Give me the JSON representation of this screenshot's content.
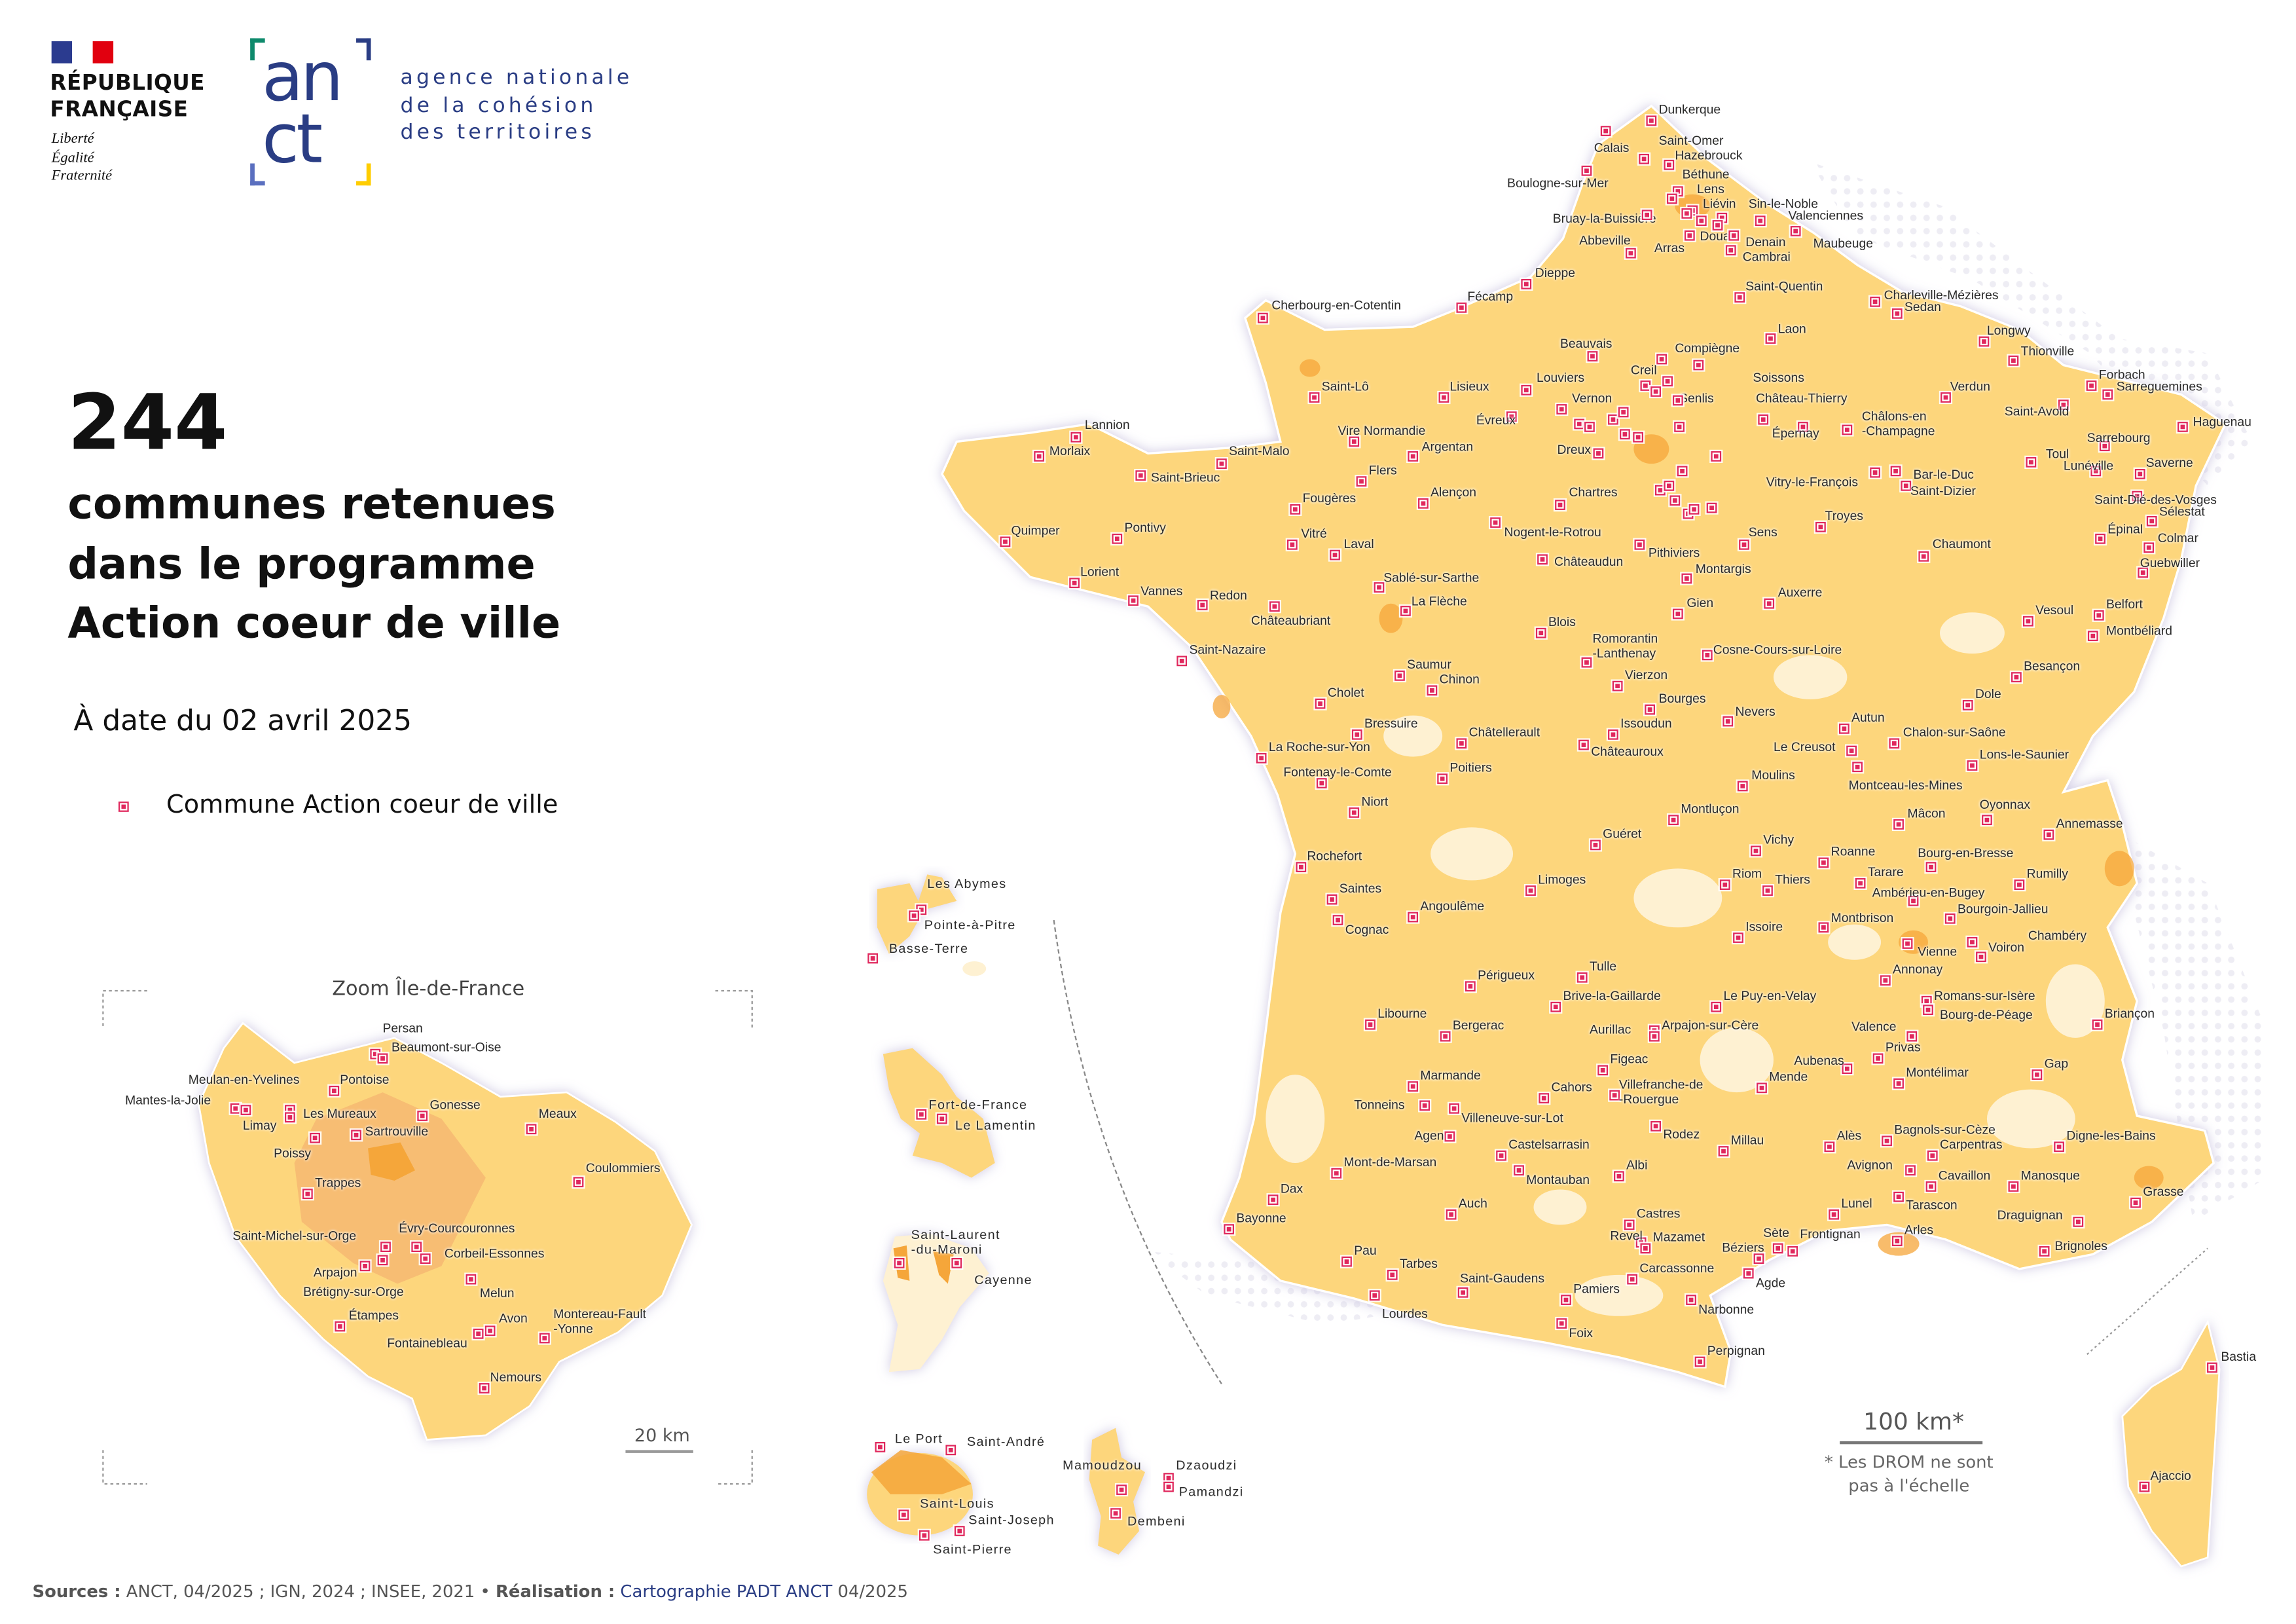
{
  "header": {
    "republic_line1": "RÉPUBLIQUE",
    "republic_line2": "FRANÇAISE",
    "motto": [
      "Liberté",
      "Égalité",
      "Fraternité"
    ],
    "anct_logo_line1": "an",
    "anct_logo_line2": "ct",
    "agency_name": [
      "agence nationale",
      "de la cohésion",
      "des territoires"
    ],
    "colors": {
      "brand_blue": "#2a3d84",
      "flag_blue": "#2b3b8f",
      "flag_red": "#e1000f",
      "corner_green": "#0e8a6c",
      "corner_lightblue": "#5a6fbf",
      "corner_yellow": "#ffcd00"
    }
  },
  "headline": {
    "count": "244",
    "title": "communes retenues\ndans le programme\nAction coeur de ville",
    "date": "À date du 02 avril 2025"
  },
  "legend": {
    "marker_label": "Commune Action coeur de ville",
    "marker_color": "#e0285d"
  },
  "map_colors": {
    "base": "#fdd67c",
    "light": "#fef1d2",
    "dense": "#f5a63a",
    "urban": "#f7bd73"
  },
  "inset": {
    "title": "Zoom Île-de-France",
    "scale": "20 km"
  },
  "scale": {
    "label": "100 km*",
    "note": "* Les DROM ne sont\npas à l'échelle"
  },
  "footer": {
    "sources_label": "Sources :",
    "sources": " ANCT, 04/2025 ; IGN, 2024 ; INSEE, 2021 • ",
    "realisation_label": "Réalisation :",
    "realisation_by": " Cartographie PADT ANCT",
    "realisation_date": " 04/2025"
  },
  "cities": {
    "mainland": [
      "Dunkerque",
      "Calais",
      "Saint-Omer",
      "Hazebrouck",
      "Boulogne-sur-Mer",
      "Béthune",
      "Lens",
      "Liévin",
      "Sin-le-Noble",
      "Valenciennes",
      "Bruay-la-Buissière",
      "Douai",
      "Denain",
      "Maubeuge",
      "Abbeville",
      "Arras",
      "Cambrai",
      "Dieppe",
      "Saint-Quentin",
      "Charleville-Mézières",
      "Sedan",
      "Fécamp",
      "Cherbourg-en-Cotentin",
      "Laon",
      "Longwy",
      "Thionville",
      "Beauvais",
      "Compiègne",
      "Creil",
      "Soissons",
      "Verdun",
      "Forbach",
      "Sarreguemines",
      "Saint-Lô",
      "Lisieux",
      "Louviers",
      "Vernon",
      "Senlis",
      "Château-Thierry",
      "Saint-Avold",
      "Haguenau",
      "Évreux",
      "Châlons-en\n-Champagne",
      "Lannion",
      "Morlaix",
      "Vire Normandie",
      "Argentan",
      "Dreux",
      "Épernay",
      "Sarrebourg",
      "Saint-Malo",
      "Toul",
      "Lunéville",
      "Saverne",
      "Flers",
      "Saint-Brieuc",
      "Bar-le-Duc",
      "Saint-Dizier",
      "Vitry-le-François",
      "Fougères",
      "Alençon",
      "Chartres",
      "Saint-Dié-des-Vosges",
      "Sélestat",
      "Troyes",
      "Quimper",
      "Pontivy",
      "Vitré",
      "Nogent-le-Rotrou",
      "Sens",
      "Épinal",
      "Colmar",
      "Laval",
      "Chaumont",
      "Pithiviers",
      "Châteaudun",
      "Montargis",
      "Guebwiller",
      "Lorient",
      "Sablé-sur-Sarthe",
      "Vannes",
      "Redon",
      "Auxerre",
      "La Flèche",
      "Gien",
      "Vesoul",
      "Belfort",
      "Châteaubriant",
      "Blois",
      "Romorantin\n-Lanthenay",
      "Montbéliard",
      "Saint-Nazaire",
      "Cosne-Cours-sur-Loire",
      "Saumur",
      "Besançon",
      "Chinon",
      "Vierzon",
      "Cholet",
      "Bourges",
      "Dole",
      "Nevers",
      "Bressuire",
      "Issoudun",
      "Autun",
      "Châtellerault",
      "Chalon-sur-Saône",
      "La Roche-sur-Yon",
      "Le Creusot",
      "Châteauroux",
      "Lons-le-Saunier",
      "Fontenay-le-Comte",
      "Poitiers",
      "Moulins",
      "Montceau-les-Mines",
      "Niort",
      "Oyonnax",
      "Montluçon",
      "Mâcon",
      "Annemasse",
      "Guéret",
      "Vichy",
      "Bourg-en-Bresse",
      "Roanne",
      "Rochefort",
      "Tarare",
      "Rumilly",
      "Riom",
      "Thiers",
      "Limoges",
      "Saintes",
      "Ambérieu-en-Bugey",
      "Bourgoin-Jallieu",
      "Angoulême",
      "Montbrison",
      "Cognac",
      "Issoire",
      "Chambéry",
      "Vienne",
      "Voiron",
      "Annonay",
      "Tulle",
      "Périgueux",
      "Le Puy-en-Velay",
      "Brive-la-Gaillarde",
      "Romans-sur-Isère",
      "Bourg-de-Péage",
      "Briançon",
      "Libourne",
      "Bergerac",
      "Aurillac",
      "Arpajon-sur-Cère",
      "Valence",
      "Privas",
      "Figeac",
      "Aubenas",
      "Gap",
      "Montélimar",
      "Marmande",
      "Mende",
      "Cahors",
      "Villefranche-de\n-Rouergue",
      "Tonneins",
      "Villeneuve-sur-Lot",
      "Agen",
      "Rodez",
      "Millau",
      "Bagnols-sur-Cèze",
      "Carpentras",
      "Digne-les-Bains",
      "Alès",
      "Castelsarrasin",
      "Mont-de-Marsan",
      "Albi",
      "Avignon",
      "Cavaillon",
      "Manosque",
      "Montauban",
      "Dax",
      "Grasse",
      "Auch",
      "Lunel",
      "Tarascon",
      "Draguignan",
      "Bayonne",
      "Castres",
      "Revel",
      "Mazamet",
      "Sète",
      "Frontignan",
      "Arles",
      "Béziers",
      "Brignoles",
      "Pau",
      "Tarbes",
      "Carcassonne",
      "Saint-Gaudens",
      "Pamiers",
      "Agde",
      "Narbonne",
      "Lourdes",
      "Foix",
      "Perpignan",
      "Bastia",
      "Ajaccio"
    ],
    "idf": [
      "Persan",
      "Beaumont-sur-Oise",
      "Meulan-en-Yvelines",
      "Pontoise",
      "Mantes-la-Jolie",
      "Gonesse",
      "Les Mureaux",
      "Meaux",
      "Limay",
      "Sartrouville",
      "Poissy",
      "Coulommiers",
      "Trappes",
      "Évry-Courcouronnes",
      "Saint-Michel-sur-Orge",
      "Corbeil-Essonnes",
      "Arpajon",
      "Melun",
      "Brétigny-sur-Orge",
      "Étampes",
      "Avon",
      "Montereau-Fault\n-Yonne",
      "Fontainebleau",
      "Nemours"
    ],
    "drom": [
      "Les Abymes",
      "Pointe-à-Pitre",
      "Basse-Terre",
      "Fort-de-France",
      "Le Lamentin",
      "Saint-Laurent\n-du-Maroni",
      "Cayenne",
      "Le Port",
      "Saint-André",
      "Saint-Louis",
      "Saint-Joseph",
      "Saint-Pierre",
      "Mamoudzou",
      "Dzaoudzi",
      "Pamandzi",
      "Dembeni"
    ]
  }
}
